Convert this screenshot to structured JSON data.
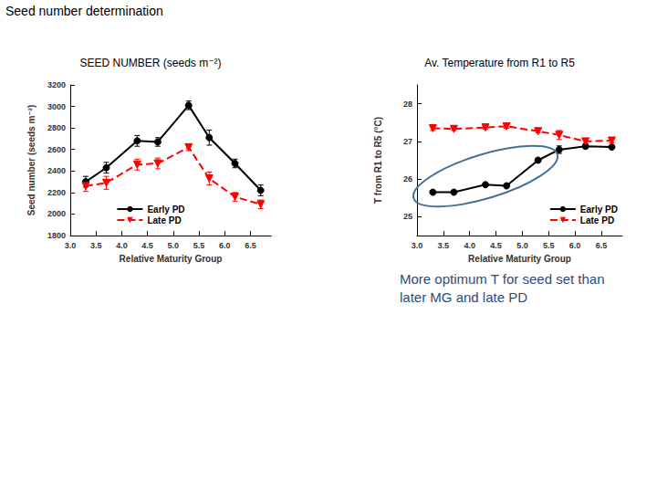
{
  "heading": "Seed number determination",
  "chart_data": [
    {
      "type": "line",
      "title": "SEED NUMBER (seeds m⁻²)",
      "xlabel": "Relative Maturity Group",
      "ylabel": "Seed number (seeds m⁻²)",
      "xlim": [
        3.0,
        6.9
      ],
      "xticks": [
        {
          "value": 3.0,
          "label": "3.0"
        },
        {
          "value": 3.5,
          "label": "3.5"
        },
        {
          "value": 4.0,
          "label": "4.0"
        },
        {
          "value": 4.5,
          "label": "4.5"
        },
        {
          "value": 5.0,
          "label": "5.0"
        },
        {
          "value": 5.5,
          "label": "5.5"
        },
        {
          "value": 6.0,
          "label": "6.0"
        },
        {
          "value": 6.5,
          "label": "6.5"
        }
      ],
      "ylim": [
        1800,
        3200
      ],
      "yticks": [
        1800,
        2000,
        2200,
        2400,
        2600,
        2800,
        3000,
        3200
      ],
      "grid": false,
      "legend": "lower center",
      "x": [
        3.3,
        3.7,
        4.3,
        4.7,
        5.3,
        5.7,
        6.2,
        6.7
      ],
      "series": [
        {
          "name": "Early PD",
          "color": "#000000",
          "marker": "circle",
          "line_style": "solid",
          "values": [
            2300,
            2430,
            2680,
            2670,
            3010,
            2710,
            2470,
            2220
          ],
          "errors": [
            50,
            50,
            50,
            40,
            40,
            70,
            40,
            50
          ]
        },
        {
          "name": "Late PD",
          "color": "#ff0000",
          "marker": "triangle-down",
          "line_style": "dashed",
          "values": [
            2260,
            2290,
            2460,
            2470,
            2620,
            2330,
            2160,
            2090
          ],
          "errors": [
            50,
            60,
            50,
            50,
            30,
            60,
            40,
            40
          ]
        }
      ]
    },
    {
      "type": "line",
      "title": "Av. Temperature from R1 to R5",
      "xlabel": "Relative Maturity Group",
      "ylabel": "T from R1 to R5 (°C)",
      "xlim": [
        3.0,
        6.9
      ],
      "xticks": [
        {
          "value": 3.0,
          "label": "3.0"
        },
        {
          "value": 3.5,
          "label": "3.5"
        },
        {
          "value": 4.0,
          "label": "4.0"
        },
        {
          "value": 4.5,
          "label": "4.5"
        },
        {
          "value": 5.0,
          "label": "5.0"
        },
        {
          "value": 5.5,
          "label": "5.5"
        },
        {
          "value": 6.0,
          "label": "6.0"
        },
        {
          "value": 6.5,
          "label": "6.5"
        }
      ],
      "ylim": [
        24.5,
        28.5
      ],
      "yticks": [
        25,
        26,
        27,
        28
      ],
      "grid": false,
      "legend": "lower right",
      "annotation": "More optimum T for seed set than later MG and late PD",
      "x": [
        3.3,
        3.7,
        4.3,
        4.7,
        5.3,
        5.7,
        6.2,
        6.7
      ],
      "series": [
        {
          "name": "Early PD",
          "color": "#000000",
          "marker": "circle",
          "line_style": "solid",
          "values": [
            25.65,
            25.65,
            25.85,
            25.82,
            26.5,
            26.78,
            26.87,
            26.85
          ],
          "errors": [
            0.04,
            0.04,
            0.04,
            0.04,
            0.05,
            0.1,
            0.05,
            0.04
          ]
        },
        {
          "name": "Late PD",
          "color": "#ff0000",
          "marker": "triangle-down",
          "line_style": "dashed",
          "values": [
            27.35,
            27.33,
            27.37,
            27.4,
            27.27,
            27.17,
            27.0,
            27.02
          ],
          "errors": [
            0.06,
            0.04,
            0.05,
            0.05,
            0.04,
            0.12,
            0.05,
            0.06
          ]
        }
      ]
    }
  ]
}
